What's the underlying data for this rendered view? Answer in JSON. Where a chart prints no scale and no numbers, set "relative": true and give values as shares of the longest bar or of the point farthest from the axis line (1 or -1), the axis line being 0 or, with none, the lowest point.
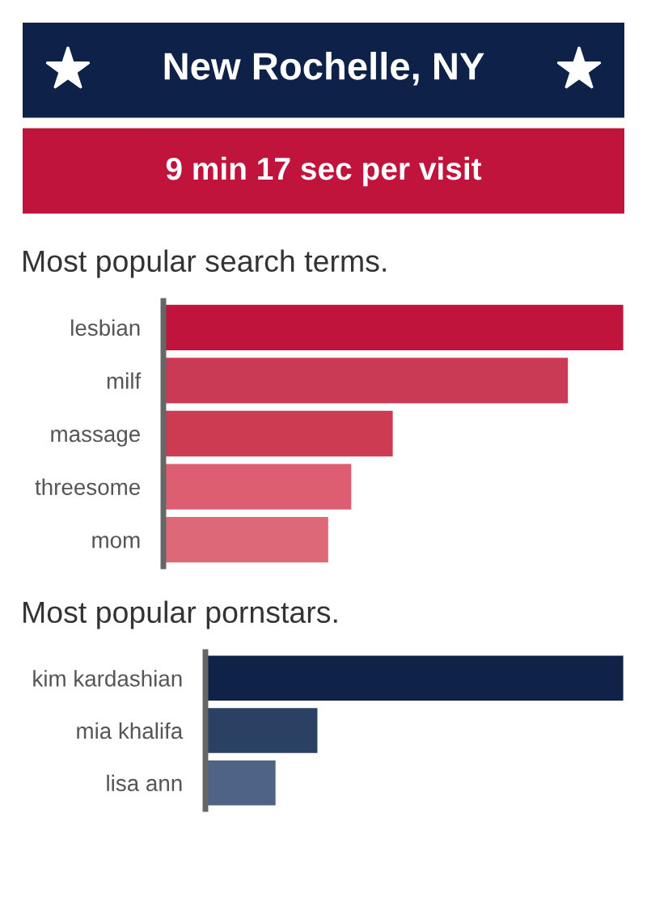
{
  "chart_data": [
    {
      "type": "other",
      "title": "New Rochelle, NY",
      "subtitle": "9 min 17 sec per visit"
    },
    {
      "type": "bar",
      "orientation": "horizontal",
      "relative": true,
      "title": "Most popular search terms.",
      "categories": [
        "lesbian",
        "milf",
        "massage",
        "threesome",
        "mom"
      ],
      "values": [
        1,
        0.88,
        0.5,
        0.41,
        0.36
      ],
      "colors": [
        "#c0143c",
        "#cb3a55",
        "#cd3b52",
        "#dc5e70",
        "#dd6878"
      ]
    },
    {
      "type": "bar",
      "orientation": "horizontal",
      "relative": true,
      "title": "Most popular pornstars.",
      "categories": [
        "kim kardashian",
        "mia khalifa",
        "lisa ann"
      ],
      "values": [
        1,
        0.27,
        0.17
      ],
      "colors": [
        "#0f2248",
        "#2b4164",
        "#4e6385"
      ]
    }
  ]
}
